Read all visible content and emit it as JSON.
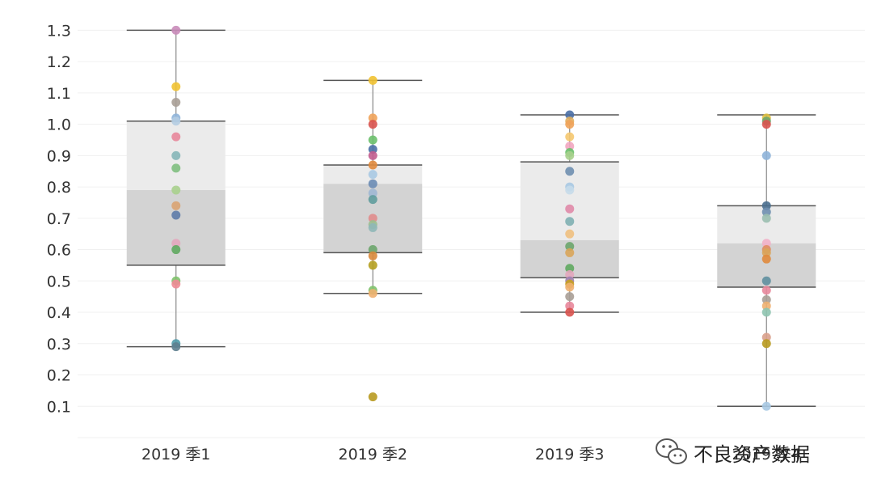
{
  "chart_data": {
    "type": "boxplot",
    "title": "",
    "xlabel": "",
    "ylabel": "",
    "ylim": [
      0,
      1.35
    ],
    "yticks": [
      0.1,
      0.2,
      0.3,
      0.4,
      0.5,
      0.6,
      0.7,
      0.8,
      0.9,
      1.0,
      1.1,
      1.2,
      1.3
    ],
    "ytick_labels": [
      "0.1",
      "0.2",
      "0.3",
      "0.4",
      "0.5",
      "0.6",
      "0.7",
      "0.8",
      "0.9",
      "1.0",
      "1.1",
      "1.2",
      "1.3"
    ],
    "grid": true,
    "categories": [
      "2019 季1",
      "2019 季2",
      "2019 季3",
      "2019 季4"
    ],
    "boxes": [
      {
        "category": "2019 季1",
        "whisker_low": 0.29,
        "q1": 0.55,
        "median": 0.79,
        "q3": 1.01,
        "whisker_high": 1.3
      },
      {
        "category": "2019 季2",
        "whisker_low": 0.46,
        "q1": 0.59,
        "median": 0.81,
        "q3": 0.87,
        "whisker_high": 1.14
      },
      {
        "category": "2019 季3",
        "whisker_low": 0.4,
        "q1": 0.51,
        "median": 0.63,
        "q3": 0.88,
        "whisker_high": 1.03
      },
      {
        "category": "2019 季4",
        "whisker_low": 0.1,
        "q1": 0.48,
        "median": 0.62,
        "q3": 0.74,
        "whisker_high": 1.03
      }
    ],
    "points": [
      {
        "category": "2019 季1",
        "value": 1.3,
        "color": "#c98bb9"
      },
      {
        "category": "2019 季1",
        "value": 1.12,
        "color": "#f1c232"
      },
      {
        "category": "2019 季1",
        "value": 1.07,
        "color": "#a89f96"
      },
      {
        "category": "2019 季1",
        "value": 1.02,
        "color": "#8fb4d9"
      },
      {
        "category": "2019 季1",
        "value": 1.01,
        "color": "#b5cde2"
      },
      {
        "category": "2019 季1",
        "value": 0.96,
        "color": "#e8879b"
      },
      {
        "category": "2019 季1",
        "value": 0.9,
        "color": "#86b6b8"
      },
      {
        "category": "2019 季1",
        "value": 0.86,
        "color": "#7fbf7f"
      },
      {
        "category": "2019 季1",
        "value": 0.79,
        "color": "#a8d08d"
      },
      {
        "category": "2019 季1",
        "value": 0.74,
        "color": "#d9a372"
      },
      {
        "category": "2019 季1",
        "value": 0.71,
        "color": "#5d7ba8"
      },
      {
        "category": "2019 季1",
        "value": 0.62,
        "color": "#e3a6bc"
      },
      {
        "category": "2019 季1",
        "value": 0.6,
        "color": "#5fa85f"
      },
      {
        "category": "2019 季1",
        "value": 0.5,
        "color": "#7ec26b"
      },
      {
        "category": "2019 季1",
        "value": 0.49,
        "color": "#ee8a95"
      },
      {
        "category": "2019 季1",
        "value": 0.3,
        "color": "#4f9aa8"
      },
      {
        "category": "2019 季1",
        "value": 0.29,
        "color": "#5e7f8f"
      },
      {
        "category": "2019 季2",
        "value": 1.14,
        "color": "#f1c232"
      },
      {
        "category": "2019 季2",
        "value": 1.02,
        "color": "#f0a35a"
      },
      {
        "category": "2019 季2",
        "value": 1.0,
        "color": "#d9534f"
      },
      {
        "category": "2019 季2",
        "value": 0.95,
        "color": "#6cc06c"
      },
      {
        "category": "2019 季2",
        "value": 0.92,
        "color": "#4a6fa5"
      },
      {
        "category": "2019 季2",
        "value": 0.9,
        "color": "#c25d8f"
      },
      {
        "category": "2019 季2",
        "value": 0.87,
        "color": "#e08a3c"
      },
      {
        "category": "2019 季2",
        "value": 0.84,
        "color": "#a9c9e3"
      },
      {
        "category": "2019 季2",
        "value": 0.81,
        "color": "#6c8cb5"
      },
      {
        "category": "2019 季2",
        "value": 0.78,
        "color": "#9fb7d3"
      },
      {
        "category": "2019 季2",
        "value": 0.76,
        "color": "#5f9c9c"
      },
      {
        "category": "2019 季2",
        "value": 0.7,
        "color": "#e08c8c"
      },
      {
        "category": "2019 季2",
        "value": 0.68,
        "color": "#9bbf8f"
      },
      {
        "category": "2019 季2",
        "value": 0.67,
        "color": "#8fb7b7"
      },
      {
        "category": "2019 季2",
        "value": 0.6,
        "color": "#6ba56b"
      },
      {
        "category": "2019 季2",
        "value": 0.58,
        "color": "#d98a3c"
      },
      {
        "category": "2019 季2",
        "value": 0.55,
        "color": "#b5a020"
      },
      {
        "category": "2019 季2",
        "value": 0.47,
        "color": "#7ec26b"
      },
      {
        "category": "2019 季2",
        "value": 0.46,
        "color": "#f0b070"
      },
      {
        "category": "2019 季2",
        "value": 0.13,
        "color": "#b89a20"
      },
      {
        "category": "2019 季3",
        "value": 1.03,
        "color": "#4a6fa5"
      },
      {
        "category": "2019 季3",
        "value": 1.01,
        "color": "#e0b060"
      },
      {
        "category": "2019 季3",
        "value": 1.0,
        "color": "#f0a35a"
      },
      {
        "category": "2019 季3",
        "value": 0.96,
        "color": "#f5c870"
      },
      {
        "category": "2019 季3",
        "value": 0.93,
        "color": "#f2a6c0"
      },
      {
        "category": "2019 季3",
        "value": 0.91,
        "color": "#6cc06c"
      },
      {
        "category": "2019 季3",
        "value": 0.9,
        "color": "#a8d08d"
      },
      {
        "category": "2019 季3",
        "value": 0.85,
        "color": "#6f8fb0"
      },
      {
        "category": "2019 季3",
        "value": 0.8,
        "color": "#a9c9e3"
      },
      {
        "category": "2019 季3",
        "value": 0.79,
        "color": "#c6dbea"
      },
      {
        "category": "2019 季3",
        "value": 0.73,
        "color": "#e08aa8"
      },
      {
        "category": "2019 季3",
        "value": 0.69,
        "color": "#7fb0b3"
      },
      {
        "category": "2019 季3",
        "value": 0.65,
        "color": "#f0c080"
      },
      {
        "category": "2019 季3",
        "value": 0.61,
        "color": "#6ba56b"
      },
      {
        "category": "2019 季3",
        "value": 0.59,
        "color": "#d9a55a"
      },
      {
        "category": "2019 季3",
        "value": 0.54,
        "color": "#5fa85f"
      },
      {
        "category": "2019 季3",
        "value": 0.52,
        "color": "#e3a6bc"
      },
      {
        "category": "2019 季3",
        "value": 0.5,
        "color": "#9d7fb0"
      },
      {
        "category": "2019 季3",
        "value": 0.49,
        "color": "#c8a020"
      },
      {
        "category": "2019 季3",
        "value": 0.48,
        "color": "#f0b070"
      },
      {
        "category": "2019 季3",
        "value": 0.45,
        "color": "#a89f96"
      },
      {
        "category": "2019 季3",
        "value": 0.42,
        "color": "#e8879b"
      },
      {
        "category": "2019 季3",
        "value": 0.4,
        "color": "#d9534f"
      },
      {
        "category": "2019 季4",
        "value": 1.02,
        "color": "#e0c040"
      },
      {
        "category": "2019 季4",
        "value": 1.01,
        "color": "#6ba56b"
      },
      {
        "category": "2019 季4",
        "value": 1.0,
        "color": "#d9534f"
      },
      {
        "category": "2019 季4",
        "value": 0.9,
        "color": "#8fb4d9"
      },
      {
        "category": "2019 季4",
        "value": 0.74,
        "color": "#4a6f8f"
      },
      {
        "category": "2019 季4",
        "value": 0.72,
        "color": "#6f8fb0"
      },
      {
        "category": "2019 季4",
        "value": 0.7,
        "color": "#9bbfb0"
      },
      {
        "category": "2019 季4",
        "value": 0.62,
        "color": "#f2b0c8"
      },
      {
        "category": "2019 季4",
        "value": 0.6,
        "color": "#e08c60"
      },
      {
        "category": "2019 季4",
        "value": 0.59,
        "color": "#d9a55a"
      },
      {
        "category": "2019 季4",
        "value": 0.57,
        "color": "#e08a3c"
      },
      {
        "category": "2019 季4",
        "value": 0.5,
        "color": "#5f8f9f"
      },
      {
        "category": "2019 季4",
        "value": 0.47,
        "color": "#e8879b"
      },
      {
        "category": "2019 季4",
        "value": 0.44,
        "color": "#a89f96"
      },
      {
        "category": "2019 季4",
        "value": 0.42,
        "color": "#f0b070"
      },
      {
        "category": "2019 季4",
        "value": 0.4,
        "color": "#8fc4b0"
      },
      {
        "category": "2019 季4",
        "value": 0.32,
        "color": "#d9a08c"
      },
      {
        "category": "2019 季4",
        "value": 0.3,
        "color": "#b89a20"
      },
      {
        "category": "2019 季4",
        "value": 0.1,
        "color": "#a9c9e3"
      }
    ],
    "colors": {
      "box_upper": "#ebebeb",
      "box_lower": "#d3d3d3",
      "box_line": "#555555",
      "whisker": "#888888",
      "grid": "#f0f0f0"
    }
  },
  "watermark": {
    "text": "不良资产数据",
    "icon": "wechat-icon"
  }
}
